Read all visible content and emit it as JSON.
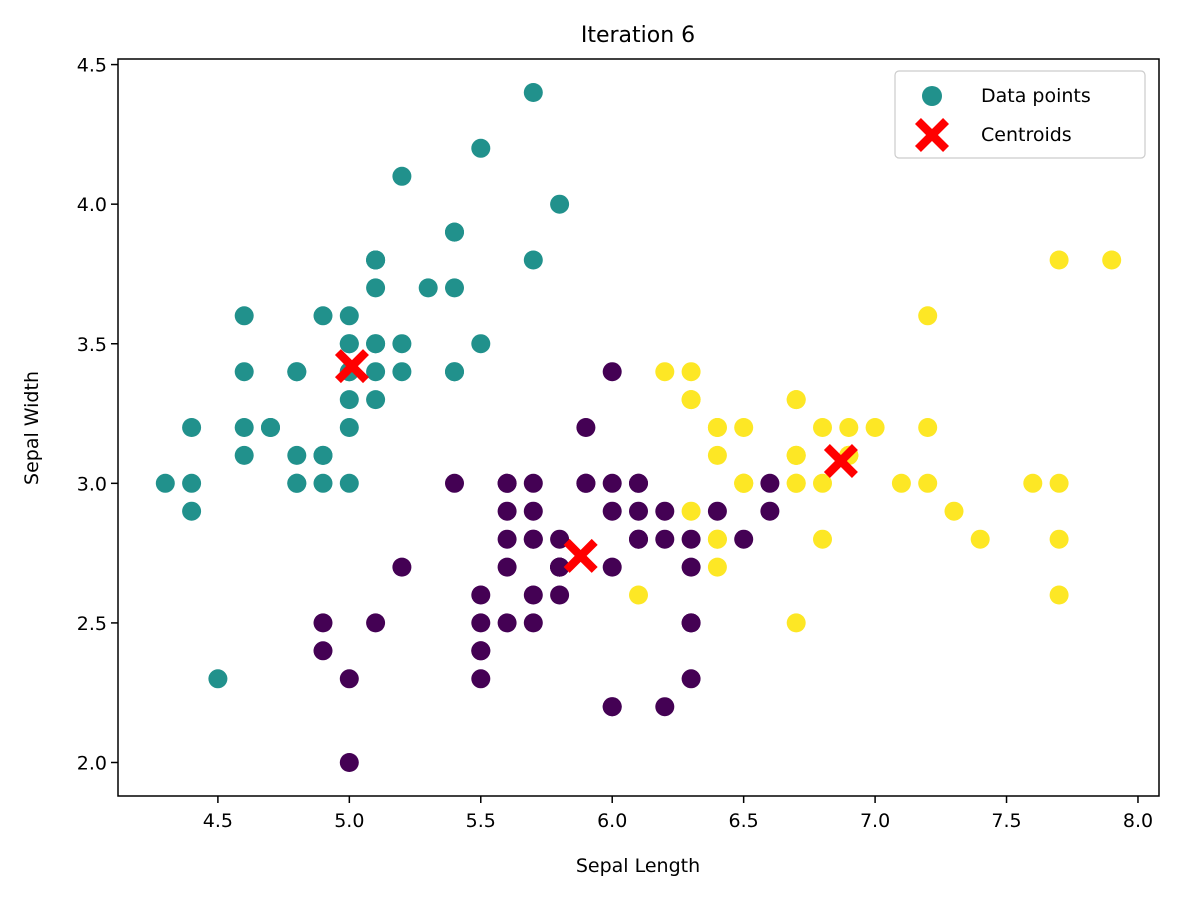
{
  "chart_data": {
    "type": "scatter",
    "title": "Iteration 6",
    "xlabel": "Sepal Length",
    "ylabel": "Sepal Width",
    "xlim": [
      4.12,
      8.08
    ],
    "ylim": [
      1.88,
      4.52
    ],
    "xticks": [
      4.5,
      5.0,
      5.5,
      6.0,
      6.5,
      7.0,
      7.5,
      8.0
    ],
    "xtick_labels": [
      "4.5",
      "5.0",
      "5.5",
      "6.0",
      "6.5",
      "7.0",
      "7.5",
      "8.0"
    ],
    "yticks": [
      2.0,
      2.5,
      3.0,
      3.5,
      4.0,
      4.5
    ],
    "ytick_labels": [
      "2.0",
      "2.5",
      "3.0",
      "3.5",
      "4.0",
      "4.5"
    ],
    "grid": false,
    "legend_position": "top-right",
    "legend": [
      {
        "label": "Data points",
        "marker": "circle",
        "color": "#21918c"
      },
      {
        "label": "Centroids",
        "marker": "x",
        "color": "#ff0000"
      }
    ],
    "cluster_colors": [
      "#440154",
      "#21918c",
      "#fde725"
    ],
    "series": [
      {
        "name": "Data points",
        "points": [
          [
            5.1,
            3.5,
            1
          ],
          [
            4.9,
            3.0,
            1
          ],
          [
            4.7,
            3.2,
            1
          ],
          [
            4.6,
            3.1,
            1
          ],
          [
            5.0,
            3.6,
            1
          ],
          [
            5.4,
            3.9,
            1
          ],
          [
            4.6,
            3.4,
            1
          ],
          [
            5.0,
            3.4,
            1
          ],
          [
            4.4,
            2.9,
            1
          ],
          [
            4.9,
            3.1,
            1
          ],
          [
            5.4,
            3.7,
            1
          ],
          [
            4.8,
            3.4,
            1
          ],
          [
            4.8,
            3.0,
            1
          ],
          [
            4.3,
            3.0,
            1
          ],
          [
            5.8,
            4.0,
            1
          ],
          [
            5.7,
            4.4,
            1
          ],
          [
            5.4,
            3.9,
            1
          ],
          [
            5.1,
            3.5,
            1
          ],
          [
            5.7,
            3.8,
            1
          ],
          [
            5.1,
            3.8,
            1
          ],
          [
            5.4,
            3.4,
            1
          ],
          [
            5.1,
            3.7,
            1
          ],
          [
            4.6,
            3.6,
            1
          ],
          [
            5.1,
            3.3,
            1
          ],
          [
            4.8,
            3.4,
            1
          ],
          [
            5.0,
            3.0,
            1
          ],
          [
            5.0,
            3.4,
            1
          ],
          [
            5.2,
            3.5,
            1
          ],
          [
            5.2,
            3.4,
            1
          ],
          [
            4.7,
            3.2,
            1
          ],
          [
            4.8,
            3.1,
            1
          ],
          [
            5.4,
            3.4,
            1
          ],
          [
            5.2,
            4.1,
            1
          ],
          [
            5.5,
            4.2,
            1
          ],
          [
            4.9,
            3.1,
            1
          ],
          [
            5.0,
            3.2,
            1
          ],
          [
            5.5,
            3.5,
            1
          ],
          [
            4.9,
            3.6,
            1
          ],
          [
            4.4,
            3.0,
            1
          ],
          [
            5.1,
            3.4,
            1
          ],
          [
            5.0,
            3.5,
            1
          ],
          [
            4.5,
            2.3,
            1
          ],
          [
            4.4,
            3.2,
            1
          ],
          [
            5.0,
            3.5,
            1
          ],
          [
            5.1,
            3.8,
            1
          ],
          [
            4.8,
            3.0,
            1
          ],
          [
            5.1,
            3.8,
            1
          ],
          [
            4.6,
            3.2,
            1
          ],
          [
            5.3,
            3.7,
            1
          ],
          [
            5.0,
            3.3,
            1
          ],
          [
            7.0,
            3.2,
            2
          ],
          [
            6.4,
            3.2,
            2
          ],
          [
            6.9,
            3.1,
            2
          ],
          [
            5.5,
            2.3,
            0
          ],
          [
            6.5,
            2.8,
            0
          ],
          [
            5.7,
            2.8,
            0
          ],
          [
            6.3,
            3.3,
            2
          ],
          [
            4.9,
            2.4,
            0
          ],
          [
            6.6,
            2.9,
            0
          ],
          [
            5.2,
            2.7,
            0
          ],
          [
            5.0,
            2.0,
            0
          ],
          [
            5.9,
            3.0,
            0
          ],
          [
            6.0,
            2.2,
            0
          ],
          [
            6.1,
            2.9,
            0
          ],
          [
            5.6,
            2.9,
            0
          ],
          [
            6.7,
            3.1,
            2
          ],
          [
            5.6,
            3.0,
            0
          ],
          [
            5.8,
            2.7,
            0
          ],
          [
            6.2,
            2.2,
            0
          ],
          [
            5.6,
            2.5,
            0
          ],
          [
            5.9,
            3.2,
            0
          ],
          [
            6.1,
            2.8,
            0
          ],
          [
            6.3,
            2.5,
            0
          ],
          [
            6.1,
            2.8,
            0
          ],
          [
            6.4,
            2.9,
            0
          ],
          [
            6.6,
            3.0,
            0
          ],
          [
            6.8,
            2.8,
            2
          ],
          [
            6.7,
            3.0,
            2
          ],
          [
            6.0,
            2.9,
            0
          ],
          [
            5.7,
            2.6,
            0
          ],
          [
            5.5,
            2.4,
            0
          ],
          [
            5.5,
            2.4,
            0
          ],
          [
            5.8,
            2.7,
            0
          ],
          [
            6.0,
            2.7,
            0
          ],
          [
            5.4,
            3.0,
            0
          ],
          [
            6.0,
            3.4,
            0
          ],
          [
            6.7,
            3.1,
            2
          ],
          [
            6.3,
            2.3,
            0
          ],
          [
            5.6,
            3.0,
            0
          ],
          [
            5.5,
            2.5,
            0
          ],
          [
            5.5,
            2.6,
            0
          ],
          [
            6.1,
            3.0,
            0
          ],
          [
            5.8,
            2.6,
            0
          ],
          [
            5.0,
            2.3,
            0
          ],
          [
            5.6,
            2.7,
            0
          ],
          [
            5.7,
            3.0,
            0
          ],
          [
            5.7,
            2.9,
            0
          ],
          [
            6.2,
            2.9,
            0
          ],
          [
            5.1,
            2.5,
            0
          ],
          [
            5.7,
            2.8,
            0
          ],
          [
            6.3,
            3.3,
            2
          ],
          [
            5.8,
            2.7,
            0
          ],
          [
            7.1,
            3.0,
            2
          ],
          [
            6.3,
            2.9,
            2
          ],
          [
            6.5,
            3.0,
            2
          ],
          [
            7.6,
            3.0,
            2
          ],
          [
            4.9,
            2.5,
            0
          ],
          [
            7.3,
            2.9,
            2
          ],
          [
            6.7,
            2.5,
            2
          ],
          [
            7.2,
            3.6,
            2
          ],
          [
            6.5,
            3.2,
            2
          ],
          [
            6.4,
            2.7,
            2
          ],
          [
            6.8,
            3.0,
            2
          ],
          [
            5.7,
            2.5,
            0
          ],
          [
            5.8,
            2.8,
            0
          ],
          [
            6.4,
            3.2,
            2
          ],
          [
            6.5,
            3.0,
            2
          ],
          [
            7.7,
            3.8,
            2
          ],
          [
            7.7,
            2.6,
            2
          ],
          [
            6.0,
            2.2,
            0
          ],
          [
            6.9,
            3.2,
            2
          ],
          [
            5.6,
            2.8,
            0
          ],
          [
            7.7,
            2.8,
            2
          ],
          [
            6.3,
            2.7,
            0
          ],
          [
            6.7,
            3.3,
            2
          ],
          [
            7.2,
            3.2,
            2
          ],
          [
            6.2,
            2.8,
            0
          ],
          [
            6.1,
            3.0,
            0
          ],
          [
            6.4,
            2.8,
            2
          ],
          [
            7.2,
            3.0,
            2
          ],
          [
            7.4,
            2.8,
            2
          ],
          [
            7.9,
            3.8,
            2
          ],
          [
            6.4,
            2.8,
            2
          ],
          [
            6.3,
            2.8,
            0
          ],
          [
            6.1,
            2.6,
            2
          ],
          [
            7.7,
            3.0,
            2
          ],
          [
            6.3,
            3.4,
            2
          ],
          [
            6.4,
            3.1,
            2
          ],
          [
            6.0,
            3.0,
            0
          ],
          [
            6.9,
            3.1,
            2
          ],
          [
            6.7,
            3.1,
            2
          ],
          [
            6.9,
            3.1,
            2
          ],
          [
            5.8,
            2.7,
            0
          ],
          [
            6.8,
            3.2,
            2
          ],
          [
            6.7,
            3.3,
            2
          ],
          [
            6.7,
            3.0,
            2
          ],
          [
            6.3,
            2.5,
            0
          ],
          [
            6.5,
            3.0,
            2
          ],
          [
            6.2,
            3.4,
            2
          ],
          [
            5.9,
            3.0,
            0
          ]
        ]
      },
      {
        "name": "Centroids",
        "points": [
          [
            5.88,
            2.74
          ],
          [
            5.01,
            3.42
          ],
          [
            6.87,
            3.08
          ]
        ]
      }
    ]
  }
}
